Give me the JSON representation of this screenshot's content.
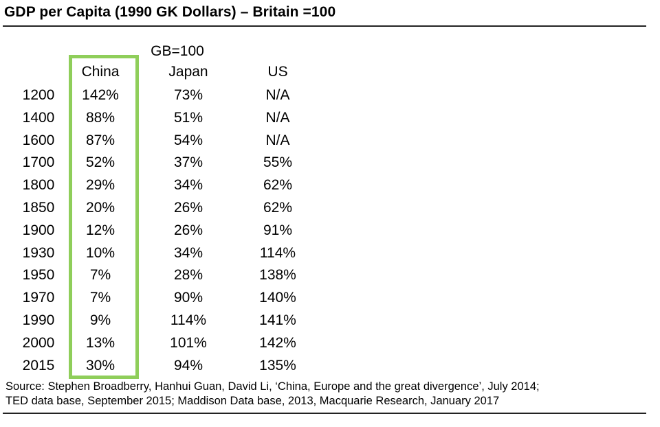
{
  "title": "GDP per Capita (1990 GK Dollars) – Britain =100",
  "chart_data": {
    "type": "table",
    "note": "GB=100",
    "columns": [
      "China",
      "Japan",
      "US"
    ],
    "rows": [
      {
        "year": "1200",
        "values": [
          "142%",
          "73%",
          "N/A"
        ]
      },
      {
        "year": "1400",
        "values": [
          "88%",
          "51%",
          "N/A"
        ]
      },
      {
        "year": "1600",
        "values": [
          "87%",
          "54%",
          "N/A"
        ]
      },
      {
        "year": "1700",
        "values": [
          "52%",
          "37%",
          "55%"
        ]
      },
      {
        "year": "1800",
        "values": [
          "29%",
          "34%",
          "62%"
        ]
      },
      {
        "year": "1850",
        "values": [
          "20%",
          "26%",
          "62%"
        ]
      },
      {
        "year": "1900",
        "values": [
          "12%",
          "26%",
          "91%"
        ]
      },
      {
        "year": "1930",
        "values": [
          "10%",
          "34%",
          "114%"
        ]
      },
      {
        "year": "1950",
        "values": [
          "7%",
          "28%",
          "138%"
        ]
      },
      {
        "year": "1970",
        "values": [
          "7%",
          "90%",
          "140%"
        ]
      },
      {
        "year": "1990",
        "values": [
          "9%",
          "114%",
          "141%"
        ]
      },
      {
        "year": "2000",
        "values": [
          "13%",
          "101%",
          "142%"
        ]
      },
      {
        "year": "2015",
        "values": [
          "30%",
          "94%",
          "135%"
        ]
      }
    ],
    "highlighted_column": "China",
    "highlight_color": "#8fce5a"
  },
  "source": {
    "line1": "Source: Stephen Broadberry, Hanhui Guan, David Li, ‘China, Europe and the great divergence’, July 2014;",
    "line2": "TED data base, September 2015; Maddison Data base, 2013, Macquarie Research, January 2017"
  }
}
